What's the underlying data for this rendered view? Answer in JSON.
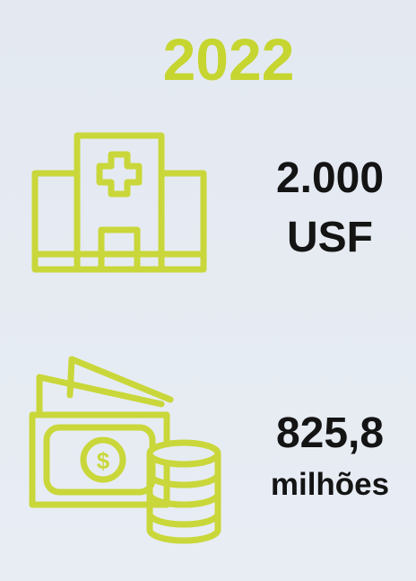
{
  "year": "2022",
  "items": [
    {
      "value": "2.000",
      "unit": "USF"
    },
    {
      "value": "825,8",
      "unit": "milhões"
    }
  ]
}
